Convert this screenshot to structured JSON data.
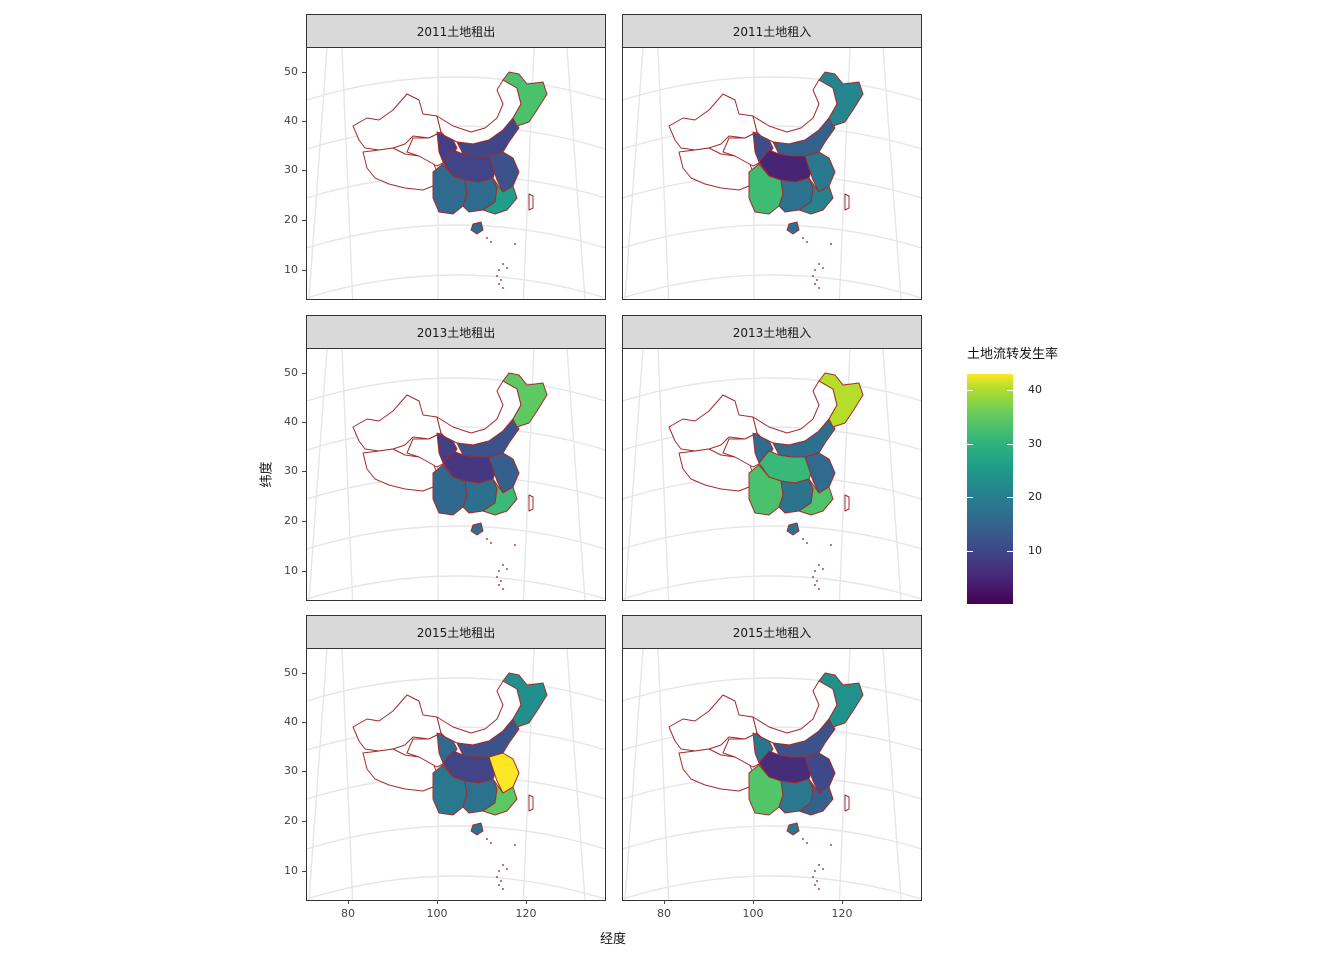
{
  "panels": [
    {
      "label": "2011土地租出",
      "col": 0,
      "row": 0,
      "fills": {
        "west": "#433e85",
        "north": "#3f4788",
        "central": "#414487",
        "east": "#3b528b",
        "south": "#2f6b8e",
        "southeast": "#1f9e89",
        "southwest": "#306a8e",
        "northeast": "#4ac16d"
      }
    },
    {
      "label": "2011土地租入",
      "col": 1,
      "row": 0,
      "fills": {
        "west": "#3d4d8a",
        "north": "#33628d",
        "central": "#482475",
        "east": "#2a788e",
        "south": "#2c728e",
        "southeast": "#26828e",
        "southwest": "#3dbc74",
        "northeast": "#25858e"
      }
    },
    {
      "label": "2013土地租出",
      "col": 0,
      "row": 1,
      "fills": {
        "west": "#433e85",
        "north": "#3b528b",
        "central": "#453781",
        "east": "#355f8d",
        "south": "#2d708e",
        "southeast": "#3aba76",
        "southwest": "#31688e",
        "northeast": "#5ec962"
      }
    },
    {
      "label": "2013土地租入",
      "col": 1,
      "row": 1,
      "fills": {
        "west": "#2f6c8e",
        "north": "#2d708e",
        "central": "#38b977",
        "east": "#306a8e",
        "south": "#2c738e",
        "southeast": "#4ec36b",
        "southwest": "#4ac16d",
        "northeast": "#b5de2b"
      }
    },
    {
      "label": "2015土地租出",
      "col": 0,
      "row": 2,
      "fills": {
        "west": "#2f6b8e",
        "north": "#3b528b",
        "central": "#414487",
        "east": "#fde725",
        "south": "#2c728e",
        "southeast": "#5cc863",
        "southwest": "#2a788e",
        "northeast": "#21908d"
      }
    },
    {
      "label": "2015土地租入",
      "col": 1,
      "row": 2,
      "fills": {
        "west": "#2a768e",
        "north": "#3b528b",
        "central": "#472c7a",
        "east": "#3e4989",
        "south": "#2a788e",
        "southeast": "#33638d",
        "southwest": "#52c569",
        "northeast": "#21918c"
      }
    }
  ],
  "y_ticks": [
    50,
    40,
    30,
    20,
    10
  ],
  "x_ticks": [
    80,
    100,
    120
  ],
  "x_title": "经度",
  "y_title": "纬度",
  "legend": {
    "title": "土地流转发生率",
    "ticks": [
      40,
      30,
      20,
      10
    ],
    "min": 0,
    "max": 43
  },
  "colors": {
    "border": "#a52a2a",
    "outline": "#8b1a1a",
    "graticule": "#e6e6e6"
  }
}
